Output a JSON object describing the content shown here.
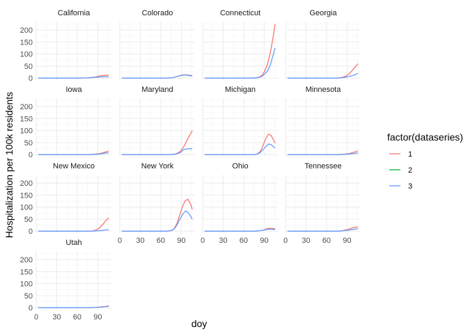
{
  "chart_data": {
    "type": "line",
    "facet_by": "state",
    "xlabel": "doy",
    "ylabel": "Hospitalization per 100k residents",
    "xlim": [
      0,
      110
    ],
    "ylim": [
      -8,
      235
    ],
    "x_ticks": [
      0,
      30,
      60,
      90
    ],
    "y_ticks": [
      0,
      50,
      100,
      150,
      200
    ],
    "y_tick_labels": [
      "0",
      "50",
      "100",
      "150",
      "200"
    ],
    "grid": true,
    "legend": {
      "title": "factor(dataseries)",
      "position": "right",
      "entries": [
        {
          "label": "1",
          "color": "#F8766D"
        },
        {
          "label": "2",
          "color": "#00BA38"
        },
        {
          "label": "3",
          "color": "#619CFF"
        }
      ]
    },
    "panels": [
      {
        "state": "California",
        "series": [
          {
            "name": "1",
            "points": [
              [
                3,
                0
              ],
              [
                60,
                0
              ],
              [
                75,
                1
              ],
              [
                85,
                4
              ],
              [
                95,
                10
              ],
              [
                106,
                13
              ]
            ]
          },
          {
            "name": "3",
            "points": [
              [
                3,
                0
              ],
              [
                60,
                0
              ],
              [
                75,
                1
              ],
              [
                85,
                3
              ],
              [
                95,
                5
              ],
              [
                106,
                6
              ]
            ]
          }
        ]
      },
      {
        "state": "Colorado",
        "series": [
          {
            "name": "1",
            "points": [
              [
                3,
                0
              ],
              [
                70,
                0
              ],
              [
                78,
                2
              ],
              [
                85,
                8
              ],
              [
                92,
                13
              ],
              [
                97,
                14
              ],
              [
                102,
                12
              ],
              [
                106,
                11
              ]
            ]
          },
          {
            "name": "3",
            "points": [
              [
                3,
                0
              ],
              [
                70,
                0
              ],
              [
                78,
                2
              ],
              [
                85,
                8
              ],
              [
                92,
                12
              ],
              [
                97,
                13
              ],
              [
                102,
                10
              ],
              [
                106,
                9
              ]
            ]
          }
        ]
      },
      {
        "state": "Connecticut",
        "series": [
          {
            "name": "1",
            "points": [
              [
                3,
                0
              ],
              [
                75,
                0
              ],
              [
                82,
                3
              ],
              [
                87,
                12
              ],
              [
                91,
                30
              ],
              [
                95,
                60
              ],
              [
                99,
                105
              ],
              [
                103,
                170
              ],
              [
                106,
                225
              ]
            ]
          },
          {
            "name": "3",
            "points": [
              [
                3,
                0
              ],
              [
                75,
                0
              ],
              [
                82,
                2
              ],
              [
                87,
                8
              ],
              [
                91,
                18
              ],
              [
                95,
                30
              ],
              [
                99,
                55
              ],
              [
                103,
                95
              ],
              [
                106,
                125
              ]
            ]
          }
        ]
      },
      {
        "state": "Georgia",
        "series": [
          {
            "name": "1",
            "points": [
              [
                3,
                0
              ],
              [
                75,
                0
              ],
              [
                82,
                2
              ],
              [
                88,
                8
              ],
              [
                94,
                20
              ],
              [
                100,
                40
              ],
              [
                106,
                60
              ]
            ]
          },
          {
            "name": "3",
            "points": [
              [
                3,
                0
              ],
              [
                75,
                0
              ],
              [
                82,
                1
              ],
              [
                88,
                4
              ],
              [
                94,
                8
              ],
              [
                100,
                12
              ],
              [
                106,
                20
              ]
            ]
          }
        ]
      },
      {
        "state": "Iowa",
        "series": [
          {
            "name": "1",
            "points": [
              [
                3,
                0
              ],
              [
                78,
                0
              ],
              [
                86,
                2
              ],
              [
                94,
                5
              ],
              [
                100,
                10
              ],
              [
                106,
                15
              ]
            ]
          },
          {
            "name": "3",
            "points": [
              [
                3,
                0
              ],
              [
                78,
                0
              ],
              [
                86,
                1
              ],
              [
                94,
                3
              ],
              [
                100,
                6
              ],
              [
                106,
                8
              ]
            ]
          }
        ]
      },
      {
        "state": "Maryland",
        "series": [
          {
            "name": "1",
            "points": [
              [
                3,
                0
              ],
              [
                75,
                0
              ],
              [
                82,
                3
              ],
              [
                88,
                12
              ],
              [
                94,
                35
              ],
              [
                100,
                70
              ],
              [
                106,
                100
              ]
            ]
          },
          {
            "name": "3",
            "points": [
              [
                3,
                0
              ],
              [
                75,
                0
              ],
              [
                82,
                2
              ],
              [
                88,
                8
              ],
              [
                94,
                22
              ],
              [
                100,
                25
              ],
              [
                106,
                24
              ]
            ]
          }
        ]
      },
      {
        "state": "Michigan",
        "series": [
          {
            "name": "1",
            "points": [
              [
                3,
                0
              ],
              [
                75,
                0
              ],
              [
                80,
                3
              ],
              [
                84,
                12
              ],
              [
                88,
                35
              ],
              [
                92,
                65
              ],
              [
                96,
                85
              ],
              [
                100,
                80
              ],
              [
                104,
                60
              ],
              [
                106,
                48
              ]
            ]
          },
          {
            "name": "3",
            "points": [
              [
                3,
                0
              ],
              [
                75,
                0
              ],
              [
                80,
                2
              ],
              [
                84,
                8
              ],
              [
                88,
                20
              ],
              [
                92,
                32
              ],
              [
                96,
                44
              ],
              [
                100,
                42
              ],
              [
                104,
                32
              ],
              [
                106,
                28
              ]
            ]
          }
        ]
      },
      {
        "state": "Minnesota",
        "series": [
          {
            "name": "1",
            "points": [
              [
                3,
                0
              ],
              [
                78,
                0
              ],
              [
                86,
                2
              ],
              [
                94,
                5
              ],
              [
                100,
                10
              ],
              [
                106,
                16
              ]
            ]
          },
          {
            "name": "3",
            "points": [
              [
                3,
                0
              ],
              [
                78,
                0
              ],
              [
                86,
                1
              ],
              [
                94,
                3
              ],
              [
                100,
                5
              ],
              [
                106,
                7
              ]
            ]
          }
        ]
      },
      {
        "state": "New Mexico",
        "series": [
          {
            "name": "1",
            "points": [
              [
                3,
                0
              ],
              [
                80,
                0
              ],
              [
                86,
                3
              ],
              [
                92,
                12
              ],
              [
                98,
                30
              ],
              [
                102,
                45
              ],
              [
                106,
                55
              ]
            ]
          },
          {
            "name": "3",
            "points": [
              [
                3,
                0
              ],
              [
                80,
                0
              ],
              [
                88,
                1
              ],
              [
                96,
                3
              ],
              [
                102,
                5
              ],
              [
                106,
                6
              ]
            ]
          }
        ]
      },
      {
        "state": "New York",
        "series": [
          {
            "name": "1",
            "points": [
              [
                3,
                0
              ],
              [
                70,
                0
              ],
              [
                76,
                3
              ],
              [
                80,
                12
              ],
              [
                84,
                35
              ],
              [
                88,
                70
              ],
              [
                92,
                105
              ],
              [
                96,
                128
              ],
              [
                100,
                132
              ],
              [
                104,
                110
              ],
              [
                106,
                90
              ]
            ]
          },
          {
            "name": "3",
            "points": [
              [
                3,
                0
              ],
              [
                70,
                0
              ],
              [
                76,
                3
              ],
              [
                80,
                10
              ],
              [
                84,
                28
              ],
              [
                88,
                50
              ],
              [
                92,
                70
              ],
              [
                96,
                84
              ],
              [
                100,
                78
              ],
              [
                104,
                60
              ],
              [
                106,
                50
              ]
            ]
          }
        ]
      },
      {
        "state": "Ohio",
        "series": [
          {
            "name": "1",
            "points": [
              [
                3,
                0
              ],
              [
                78,
                0
              ],
              [
                84,
                2
              ],
              [
                90,
                6
              ],
              [
                95,
                11
              ],
              [
                100,
                12
              ],
              [
                106,
                10
              ]
            ]
          },
          {
            "name": "3",
            "points": [
              [
                3,
                0
              ],
              [
                78,
                0
              ],
              [
                84,
                2
              ],
              [
                90,
                5
              ],
              [
                95,
                8
              ],
              [
                100,
                8
              ],
              [
                106,
                7
              ]
            ]
          }
        ]
      },
      {
        "state": "Tennessee",
        "series": [
          {
            "name": "1",
            "points": [
              [
                3,
                0
              ],
              [
                78,
                0
              ],
              [
                85,
                3
              ],
              [
                92,
                8
              ],
              [
                98,
                14
              ],
              [
                103,
                17
              ],
              [
                106,
                18
              ]
            ]
          },
          {
            "name": "3",
            "points": [
              [
                3,
                0
              ],
              [
                78,
                0
              ],
              [
                85,
                2
              ],
              [
                92,
                4
              ],
              [
                98,
                7
              ],
              [
                103,
                9
              ],
              [
                106,
                11
              ]
            ]
          }
        ]
      },
      {
        "state": "Utah",
        "series": [
          {
            "name": "1",
            "points": [
              [
                3,
                0
              ],
              [
                78,
                0
              ],
              [
                86,
                1
              ],
              [
                94,
                3
              ],
              [
                100,
                5
              ],
              [
                106,
                8
              ]
            ]
          },
          {
            "name": "3",
            "points": [
              [
                3,
                0
              ],
              [
                78,
                0
              ],
              [
                86,
                1
              ],
              [
                94,
                2
              ],
              [
                100,
                4
              ],
              [
                106,
                6
              ]
            ]
          }
        ]
      }
    ]
  }
}
